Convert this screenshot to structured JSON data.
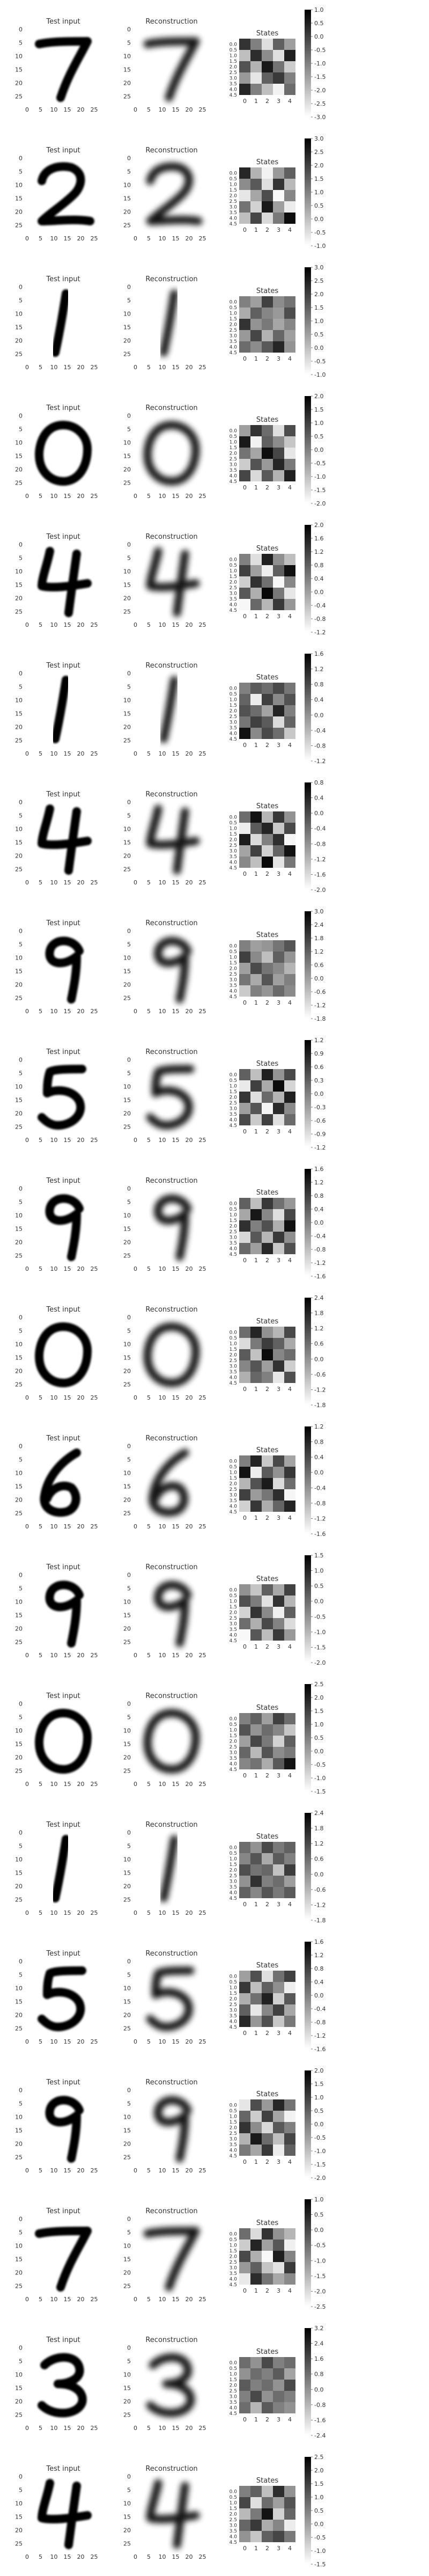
{
  "figure": {
    "panel_titles": [
      "Test input",
      "Reconstruction",
      "States"
    ],
    "img_ticks": [
      "0",
      "5",
      "10",
      "15",
      "20",
      "25"
    ],
    "state_xticks": [
      "0",
      "1",
      "2",
      "3",
      "4"
    ],
    "state_yticks": [
      "0.0",
      "0.5",
      "1.0",
      "1.5",
      "2.0",
      "2.5",
      "3.0",
      "3.5",
      "4.0",
      "4.5"
    ]
  },
  "chart_data": [
    {
      "type": "heatmap",
      "digit": "7",
      "cbar_ticks": [
        "1.0",
        "0.5",
        "0.0",
        "-0.5",
        "-1.0",
        "-1.5",
        "-2.0",
        "-2.5",
        "-3.0"
      ],
      "vmin": -3.0,
      "vmax": 1.0,
      "values": [
        [
          0.2,
          -1.0,
          -2.5,
          -0.5,
          -1.5
        ],
        [
          -2.0,
          0.3,
          -1.2,
          -2.5,
          0.5
        ],
        [
          -0.3,
          -1.8,
          0.6,
          -0.8,
          -2.2
        ],
        [
          -1.4,
          -2.6,
          -0.5,
          0.1,
          -1.0
        ],
        [
          0.4,
          -1.0,
          -2.0,
          -2.8,
          -0.7
        ]
      ]
    },
    {
      "type": "heatmap",
      "digit": "2",
      "cbar_ticks": [
        "3.0",
        "2.5",
        "2.0",
        "1.5",
        "1.0",
        "0.5",
        "0.0",
        "-0.5",
        "-1.0"
      ],
      "vmin": -1.0,
      "vmax": 3.0,
      "values": [
        [
          2.4,
          0.2,
          -0.8,
          0.6,
          1.5
        ],
        [
          0.8,
          1.6,
          -0.5,
          2.2,
          0.1
        ],
        [
          -0.6,
          0.4,
          1.8,
          -0.9,
          0.9
        ],
        [
          1.2,
          -0.3,
          2.6,
          0.5,
          -0.7
        ],
        [
          0.0,
          1.9,
          -0.4,
          1.1,
          2.8
        ]
      ]
    },
    {
      "type": "heatmap",
      "digit": "1",
      "cbar_ticks": [
        "3.0",
        "2.5",
        "2.0",
        "1.5",
        "1.0",
        "0.5",
        "0.0",
        "-0.5",
        "-1.0"
      ],
      "vmin": -1.0,
      "vmax": 3.0,
      "values": [
        [
          1.0,
          0.5,
          2.0,
          0.8,
          1.2
        ],
        [
          0.3,
          1.5,
          0.9,
          0.6,
          1.8
        ],
        [
          2.2,
          0.7,
          1.1,
          0.4,
          0.9
        ],
        [
          0.6,
          1.9,
          0.2,
          1.4,
          0.5
        ],
        [
          1.3,
          0.8,
          1.6,
          2.4,
          0.7
        ]
      ]
    },
    {
      "type": "heatmap",
      "digit": "0",
      "cbar_ticks": [
        "2.0",
        "1.5",
        "1.0",
        "0.5",
        "0.0",
        "-0.5",
        "-1.0",
        "-1.5",
        "-2.0"
      ],
      "vmin": -2.0,
      "vmax": 2.0,
      "values": [
        [
          -0.5,
          1.2,
          0.3,
          -1.5,
          0.8
        ],
        [
          1.6,
          -1.8,
          0.5,
          -0.2,
          -1.1
        ],
        [
          0.2,
          -0.6,
          1.8,
          0.9,
          -1.6
        ],
        [
          -1.2,
          0.7,
          -0.4,
          1.4,
          0.1
        ],
        [
          0.9,
          -1.4,
          0.6,
          -0.8,
          1.5
        ]
      ]
    },
    {
      "type": "heatmap",
      "digit": "4",
      "cbar_ticks": [
        "2.0",
        "1.6",
        "1.2",
        "0.8",
        "0.4",
        "0.0",
        "-0.4",
        "-0.8",
        "-1.2"
      ],
      "vmin": -1.2,
      "vmax": 2.0,
      "values": [
        [
          0.4,
          -0.8,
          1.6,
          0.2,
          -0.4
        ],
        [
          1.2,
          0.0,
          -1.0,
          0.8,
          1.8
        ],
        [
          -0.6,
          1.4,
          0.6,
          -1.1,
          0.3
        ],
        [
          0.9,
          -0.2,
          1.9,
          0.5,
          -0.9
        ],
        [
          -1.1,
          0.7,
          -0.3,
          1.3,
          0.1
        ]
      ]
    },
    {
      "type": "heatmap",
      "digit": "1",
      "cbar_ticks": [
        "1.6",
        "1.2",
        "0.8",
        "0.4",
        "0.0",
        "-0.4",
        "-0.8",
        "-1.2"
      ],
      "vmin": -1.2,
      "vmax": 1.6,
      "values": [
        [
          0.2,
          0.6,
          0.4,
          0.8,
          0.3
        ],
        [
          0.5,
          -1.0,
          0.9,
          0.1,
          0.7
        ],
        [
          0.7,
          0.4,
          -0.2,
          1.2,
          0.2
        ],
        [
          0.3,
          0.9,
          0.6,
          -0.8,
          0.5
        ],
        [
          1.4,
          0.1,
          0.8,
          0.4,
          -0.6
        ]
      ]
    },
    {
      "type": "heatmap",
      "digit": "4",
      "cbar_ticks": [
        "0.8",
        "0.4",
        "0.0",
        "-0.4",
        "-0.8",
        "-1.2",
        "-1.6",
        "-2.0"
      ],
      "vmin": -2.0,
      "vmax": 0.8,
      "values": [
        [
          -0.4,
          0.6,
          -1.2,
          0.2,
          -0.8
        ],
        [
          -1.8,
          -0.2,
          0.4,
          -1.4,
          0.0
        ],
        [
          0.5,
          -1.6,
          -0.6,
          0.3,
          -1.9
        ],
        [
          -1.0,
          0.1,
          -1.5,
          -0.3,
          0.6
        ],
        [
          -0.7,
          -1.3,
          0.7,
          -1.7,
          -0.5
        ]
      ]
    },
    {
      "type": "heatmap",
      "digit": "9",
      "cbar_ticks": [
        "3.0",
        "2.4",
        "1.8",
        "1.2",
        "0.6",
        "0.0",
        "-0.6",
        "-1.2",
        "-1.8"
      ],
      "vmin": -1.8,
      "vmax": 3.0,
      "values": [
        [
          0.6,
          0.0,
          0.2,
          0.8,
          1.4
        ],
        [
          1.8,
          0.4,
          -0.6,
          1.2,
          0.2
        ],
        [
          0.0,
          1.6,
          0.8,
          0.4,
          -0.4
        ],
        [
          0.8,
          -0.2,
          1.4,
          0.0,
          0.6
        ],
        [
          -0.8,
          0.6,
          0.2,
          1.0,
          0.4
        ]
      ]
    },
    {
      "type": "heatmap",
      "digit": "5",
      "cbar_ticks": [
        "1.2",
        "0.9",
        "0.6",
        "0.3",
        "0.0",
        "-0.3",
        "-0.6",
        "-0.9",
        "-1.2"
      ],
      "vmin": -1.2,
      "vmax": 1.2,
      "values": [
        [
          0.3,
          -0.6,
          0.9,
          -0.2,
          0.5
        ],
        [
          -1.0,
          0.6,
          -0.4,
          1.1,
          -0.8
        ],
        [
          0.7,
          -0.9,
          0.2,
          -0.5,
          0.9
        ],
        [
          -0.3,
          0.4,
          -1.1,
          0.8,
          -0.1
        ],
        [
          0.5,
          -0.7,
          0.6,
          -0.9,
          0.2
        ]
      ]
    },
    {
      "type": "heatmap",
      "digit": "9",
      "cbar_ticks": [
        "1.6",
        "1.2",
        "0.8",
        "0.4",
        "0.0",
        "-0.4",
        "-0.8",
        "-1.2",
        "-1.6"
      ],
      "vmin": -1.6,
      "vmax": 1.6,
      "values": [
        [
          0.4,
          -0.8,
          0.9,
          0.2,
          -0.3
        ],
        [
          -0.5,
          1.3,
          -0.1,
          -1.2,
          0.7
        ],
        [
          1.0,
          0.0,
          0.6,
          -0.6,
          1.4
        ],
        [
          -1.1,
          0.5,
          -0.7,
          0.9,
          -0.2
        ],
        [
          0.3,
          -0.4,
          1.1,
          -0.9,
          0.6
        ]
      ]
    },
    {
      "type": "heatmap",
      "digit": "0",
      "cbar_ticks": [
        "2.4",
        "1.8",
        "1.2",
        "0.6",
        "0.0",
        "-0.6",
        "-1.2",
        "-1.8"
      ],
      "vmin": -1.8,
      "vmax": 2.4,
      "values": [
        [
          0.6,
          1.8,
          0.0,
          -0.6,
          1.2
        ],
        [
          -1.2,
          0.4,
          1.4,
          0.8,
          -0.4
        ],
        [
          0.9,
          -0.8,
          2.2,
          0.2,
          0.6
        ],
        [
          0.2,
          1.0,
          -0.2,
          1.6,
          -1.0
        ],
        [
          -0.5,
          0.7,
          0.3,
          -1.4,
          1.1
        ]
      ]
    },
    {
      "type": "heatmap",
      "digit": "6",
      "cbar_ticks": [
        "1.2",
        "0.8",
        "0.4",
        "0.0",
        "-0.4",
        "-0.8",
        "-1.2",
        "-1.6"
      ],
      "vmin": -1.6,
      "vmax": 1.2,
      "values": [
        [
          -0.2,
          0.8,
          -1.0,
          0.4,
          -0.6
        ],
        [
          1.0,
          -1.4,
          0.2,
          -0.4,
          0.6
        ],
        [
          -0.8,
          0.3,
          0.9,
          -1.2,
          0.0
        ],
        [
          0.5,
          -0.5,
          -0.1,
          0.7,
          -1.5
        ],
        [
          -1.1,
          0.6,
          -0.7,
          0.1,
          0.8
        ]
      ]
    },
    {
      "type": "heatmap",
      "digit": "9",
      "cbar_ticks": [
        "1.5",
        "1.0",
        "0.5",
        "0.0",
        "-0.5",
        "-1.0",
        "-1.5",
        "-2.0"
      ],
      "vmin": -2.0,
      "vmax": 1.5,
      "values": [
        [
          -0.5,
          -1.2,
          0.2,
          -0.8,
          0.6
        ],
        [
          0.4,
          -0.2,
          -1.6,
          0.8,
          -1.0
        ],
        [
          -1.4,
          0.8,
          -0.4,
          -1.8,
          0.2
        ],
        [
          0.0,
          -0.9,
          0.5,
          -0.3,
          -1.5
        ],
        [
          -1.9,
          0.3,
          -1.1,
          0.7,
          -0.6
        ]
      ]
    },
    {
      "type": "heatmap",
      "digit": "0",
      "cbar_ticks": [
        "2.5",
        "2.0",
        "1.5",
        "1.0",
        "0.5",
        "0.0",
        "-0.5",
        "-1.0",
        "-1.5"
      ],
      "vmin": -1.5,
      "vmax": 2.5,
      "values": [
        [
          0.5,
          1.0,
          0.0,
          1.5,
          0.8
        ],
        [
          1.2,
          0.2,
          0.8,
          0.4,
          -0.6
        ],
        [
          0.0,
          1.4,
          0.6,
          -0.8,
          1.0
        ],
        [
          0.9,
          -0.4,
          1.2,
          0.3,
          0.6
        ],
        [
          0.4,
          0.7,
          -0.2,
          1.1,
          2.2
        ]
      ]
    },
    {
      "type": "heatmap",
      "digit": "1",
      "cbar_ticks": [
        "2.4",
        "1.8",
        "1.2",
        "0.6",
        "0.0",
        "-0.6",
        "-1.2",
        "-1.8"
      ],
      "vmin": -1.8,
      "vmax": 2.4,
      "values": [
        [
          0.6,
          0.0,
          1.2,
          0.4,
          0.8
        ],
        [
          0.2,
          1.0,
          -0.4,
          0.9,
          0.3
        ],
        [
          1.1,
          0.5,
          0.7,
          -0.8,
          1.4
        ],
        [
          0.0,
          1.6,
          0.3,
          0.6,
          -0.2
        ],
        [
          0.8,
          0.2,
          1.0,
          0.4,
          0.9
        ]
      ]
    },
    {
      "type": "heatmap",
      "digit": "5",
      "cbar_ticks": [
        "1.6",
        "1.2",
        "0.8",
        "0.4",
        "0.0",
        "-0.4",
        "-0.8",
        "-1.2",
        "-1.6"
      ],
      "vmin": -1.6,
      "vmax": 1.6,
      "values": [
        [
          -0.4,
          0.6,
          -1.2,
          0.2,
          0.8
        ],
        [
          0.9,
          -0.8,
          0.4,
          -0.2,
          -1.4
        ],
        [
          -0.6,
          0.2,
          1.2,
          -1.0,
          0.5
        ],
        [
          0.4,
          -1.3,
          -0.1,
          0.8,
          -0.5
        ],
        [
          1.1,
          -0.3,
          0.6,
          -0.9,
          0.1
        ]
      ]
    },
    {
      "type": "heatmap",
      "digit": "9",
      "cbar_ticks": [
        "2.0",
        "1.5",
        "1.0",
        "0.5",
        "0.0",
        "-0.5",
        "-1.0",
        "-1.5",
        "-2.0"
      ],
      "vmin": -2.0,
      "vmax": 2.0,
      "values": [
        [
          -1.6,
          0.8,
          -0.4,
          1.4,
          0.2
        ],
        [
          0.4,
          -1.2,
          1.0,
          -0.6,
          -1.8
        ],
        [
          1.2,
          -0.2,
          -1.4,
          0.6,
          0.0
        ],
        [
          -0.8,
          1.6,
          0.3,
          -1.0,
          0.9
        ],
        [
          0.1,
          -0.6,
          1.1,
          -1.7,
          0.5
        ]
      ]
    },
    {
      "type": "heatmap",
      "digit": "7",
      "cbar_ticks": [
        "1.0",
        "0.5",
        "0.0",
        "-0.5",
        "-1.0",
        "-1.5",
        "-2.0",
        "-2.5"
      ],
      "vmin": -2.5,
      "vmax": 1.0,
      "values": [
        [
          -0.5,
          -2.0,
          0.3,
          -1.0,
          -1.5
        ],
        [
          -1.8,
          0.5,
          -1.2,
          -0.2,
          -2.3
        ],
        [
          0.0,
          -1.4,
          -2.4,
          0.6,
          -0.8
        ],
        [
          -1.1,
          -0.3,
          -1.7,
          -2.1,
          0.2
        ],
        [
          -2.2,
          0.4,
          -0.6,
          -1.3,
          -0.9
        ]
      ]
    },
    {
      "type": "heatmap",
      "digit": "3",
      "cbar_ticks": [
        "3.2",
        "2.4",
        "1.6",
        "0.8",
        "0.0",
        "-0.8",
        "-1.6",
        "-2.4"
      ],
      "vmin": -2.4,
      "vmax": 3.2,
      "values": [
        [
          0.8,
          0.0,
          1.6,
          0.4,
          0.8
        ],
        [
          0.0,
          0.8,
          0.4,
          1.2,
          -0.4
        ],
        [
          1.2,
          0.4,
          0.8,
          0.0,
          1.6
        ],
        [
          0.4,
          1.6,
          0.0,
          0.8,
          0.4
        ],
        [
          0.8,
          -0.8,
          1.2,
          0.4,
          0.0
        ]
      ]
    },
    {
      "type": "heatmap",
      "digit": "4",
      "cbar_ticks": [
        "2.5",
        "2.0",
        "1.5",
        "1.0",
        "0.5",
        "0.0",
        "-0.5",
        "-1.0",
        "-1.5"
      ],
      "vmin": -1.5,
      "vmax": 2.5,
      "values": [
        [
          0.5,
          1.0,
          -0.5,
          1.8,
          0.2
        ],
        [
          1.4,
          -1.0,
          0.8,
          0.0,
          1.2
        ],
        [
          -0.4,
          0.6,
          2.2,
          -0.8,
          0.9
        ],
        [
          0.9,
          1.6,
          -0.2,
          0.4,
          -1.2
        ],
        [
          0.2,
          -0.6,
          1.0,
          1.4,
          0.6
        ]
      ]
    }
  ]
}
